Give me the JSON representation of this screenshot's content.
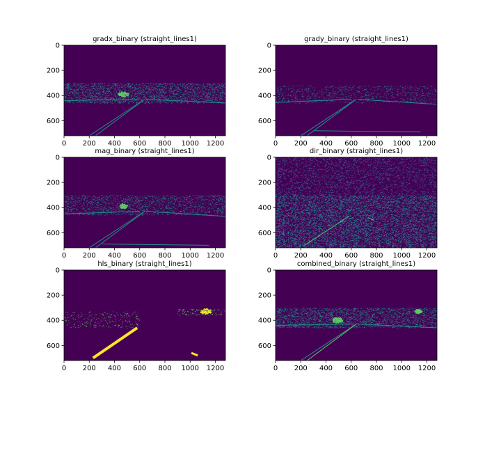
{
  "figure": {
    "background": "#ffffff",
    "image_background_color": "#440154",
    "colormap": [
      "#440154",
      "#3b528b",
      "#21918c",
      "#5ec962",
      "#fde725"
    ]
  },
  "chart_data": [
    {
      "type": "heatmap",
      "title": "gradx_binary (straight_lines1)",
      "xlim": [
        0,
        1280
      ],
      "ylim": [
        720,
        0
      ],
      "xticks": [
        0,
        200,
        400,
        600,
        800,
        1000,
        1200
      ],
      "yticks": [
        0,
        200,
        400,
        600
      ],
      "image_size": [
        1280,
        720
      ],
      "features": [
        {
          "kind": "lane",
          "from": [
            200,
            720
          ],
          "to": [
            640,
            430
          ],
          "color": "#21918c"
        },
        {
          "kind": "lane",
          "from": [
            250,
            720
          ],
          "to": [
            640,
            430
          ],
          "color": "#21918c"
        },
        {
          "kind": "edge",
          "from": [
            0,
            440
          ],
          "to": [
            600,
            430
          ],
          "color": "#21918c"
        },
        {
          "kind": "edge",
          "from": [
            650,
            430
          ],
          "to": [
            1280,
            460
          ],
          "color": "#21918c"
        },
        {
          "kind": "texture",
          "region": [
            0,
            300,
            1280,
            460
          ],
          "density": 0.45,
          "color": "#21918c"
        },
        {
          "kind": "blob",
          "center": [
            470,
            390
          ],
          "radius": 40,
          "color": "#5ec962"
        }
      ]
    },
    {
      "type": "heatmap",
      "title": "grady_binary (straight_lines1)",
      "xlim": [
        0,
        1280
      ],
      "ylim": [
        720,
        0
      ],
      "xticks": [
        0,
        200,
        400,
        600,
        800,
        1000,
        1200
      ],
      "yticks": [
        0,
        200,
        400,
        600
      ],
      "image_size": [
        1280,
        720
      ],
      "features": [
        {
          "kind": "lane",
          "from": [
            200,
            720
          ],
          "to": [
            640,
            430
          ],
          "color": "#21918c"
        },
        {
          "kind": "lane",
          "from": [
            250,
            720
          ],
          "to": [
            640,
            430
          ],
          "color": "#21918c"
        },
        {
          "kind": "edge",
          "from": [
            0,
            455
          ],
          "to": [
            600,
            430
          ],
          "color": "#21918c"
        },
        {
          "kind": "edge",
          "from": [
            650,
            430
          ],
          "to": [
            1280,
            470
          ],
          "color": "#21918c"
        },
        {
          "kind": "edge",
          "from": [
            300,
            680
          ],
          "to": [
            1150,
            690
          ],
          "color": "#21918c"
        },
        {
          "kind": "texture",
          "region": [
            0,
            320,
            1280,
            460
          ],
          "density": 0.18,
          "color": "#21918c"
        }
      ]
    },
    {
      "type": "heatmap",
      "title": "mag_binary (straight_lines1)",
      "xlim": [
        0,
        1280
      ],
      "ylim": [
        720,
        0
      ],
      "xticks": [
        0,
        200,
        400,
        600,
        800,
        1000,
        1200
      ],
      "yticks": [
        0,
        200,
        400,
        600
      ],
      "image_size": [
        1280,
        720
      ],
      "features": [
        {
          "kind": "lane",
          "from": [
            200,
            720
          ],
          "to": [
            640,
            430
          ],
          "color": "#21918c"
        },
        {
          "kind": "lane",
          "from": [
            250,
            720
          ],
          "to": [
            640,
            430
          ],
          "color": "#21918c"
        },
        {
          "kind": "edge",
          "from": [
            0,
            450
          ],
          "to": [
            600,
            430
          ],
          "color": "#21918c"
        },
        {
          "kind": "edge",
          "from": [
            650,
            430
          ],
          "to": [
            1280,
            470
          ],
          "color": "#21918c"
        },
        {
          "kind": "edge",
          "from": [
            300,
            690
          ],
          "to": [
            1150,
            700
          ],
          "color": "#21918c"
        },
        {
          "kind": "texture",
          "region": [
            0,
            300,
            1280,
            460
          ],
          "density": 0.3,
          "color": "#21918c"
        },
        {
          "kind": "blob",
          "center": [
            470,
            390
          ],
          "radius": 35,
          "color": "#5ec962"
        }
      ]
    },
    {
      "type": "heatmap",
      "title": "dir_binary (straight_lines1)",
      "xlim": [
        0,
        1280
      ],
      "ylim": [
        720,
        0
      ],
      "xticks": [
        0,
        200,
        400,
        600,
        800,
        1000,
        1200
      ],
      "yticks": [
        0,
        200,
        400,
        600
      ],
      "image_size": [
        1280,
        720
      ],
      "features": [
        {
          "kind": "texture",
          "region": [
            0,
            0,
            1280,
            720
          ],
          "density": 0.55,
          "color": "#3b528b"
        },
        {
          "kind": "texture",
          "region": [
            0,
            300,
            1280,
            720
          ],
          "density": 0.35,
          "color": "#21918c"
        },
        {
          "kind": "lane",
          "from": [
            230,
            700
          ],
          "to": [
            580,
            470
          ],
          "color": "#5ec962"
        },
        {
          "kind": "lane",
          "from": [
            730,
            480
          ],
          "to": [
            780,
            500
          ],
          "color": "#5ec962"
        }
      ]
    },
    {
      "type": "heatmap",
      "title": "hls_binary (straight_lines1)",
      "xlim": [
        0,
        1280
      ],
      "ylim": [
        720,
        0
      ],
      "xticks": [
        0,
        200,
        400,
        600,
        800,
        1000,
        1200
      ],
      "yticks": [
        0,
        200,
        400,
        600
      ],
      "image_size": [
        1280,
        720
      ],
      "features": [
        {
          "kind": "lane",
          "from": [
            230,
            700
          ],
          "to": [
            580,
            460
          ],
          "color": "#fde725",
          "width": 4
        },
        {
          "kind": "lane",
          "from": [
            1010,
            660
          ],
          "to": [
            1060,
            680
          ],
          "color": "#fde725",
          "width": 3
        },
        {
          "kind": "blob",
          "center": [
            1130,
            330
          ],
          "radius": 45,
          "color": "#fde725"
        },
        {
          "kind": "texture",
          "region": [
            0,
            330,
            600,
            460
          ],
          "density": 0.12,
          "color": "#5ec962"
        },
        {
          "kind": "texture",
          "region": [
            900,
            310,
            1280,
            360
          ],
          "density": 0.25,
          "color": "#5ec962"
        }
      ]
    },
    {
      "type": "heatmap",
      "title": "combined_binary (straight_lines1)",
      "xlim": [
        0,
        1280
      ],
      "ylim": [
        720,
        0
      ],
      "xticks": [
        0,
        200,
        400,
        600,
        800,
        1000,
        1200
      ],
      "yticks": [
        0,
        200,
        400,
        600
      ],
      "image_size": [
        1280,
        720
      ],
      "features": [
        {
          "kind": "lane",
          "from": [
            200,
            720
          ],
          "to": [
            640,
            430
          ],
          "color": "#21918c"
        },
        {
          "kind": "lane",
          "from": [
            250,
            720
          ],
          "to": [
            640,
            430
          ],
          "color": "#5ec962"
        },
        {
          "kind": "edge",
          "from": [
            0,
            440
          ],
          "to": [
            600,
            430
          ],
          "color": "#21918c"
        },
        {
          "kind": "edge",
          "from": [
            650,
            430
          ],
          "to": [
            1280,
            460
          ],
          "color": "#21918c"
        },
        {
          "kind": "texture",
          "region": [
            0,
            300,
            1280,
            460
          ],
          "density": 0.45,
          "color": "#21918c"
        },
        {
          "kind": "blob",
          "center": [
            490,
            400
          ],
          "radius": 40,
          "color": "#5ec962"
        },
        {
          "kind": "blob",
          "center": [
            1130,
            330
          ],
          "radius": 30,
          "color": "#5ec962"
        }
      ]
    }
  ]
}
